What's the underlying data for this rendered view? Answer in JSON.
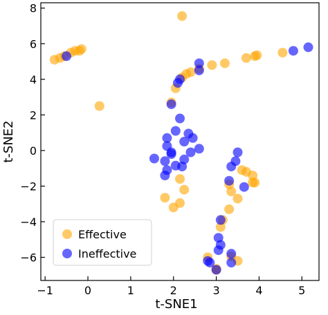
{
  "chart_data": {
    "type": "scatter",
    "xlabel": "t-SNE1",
    "ylabel": "t-SNE2",
    "xlim": [
      -1.1,
      5.4
    ],
    "ylim": [
      -7.3,
      8.3
    ],
    "x_ticks": [
      -1,
      0,
      1,
      2,
      3,
      4,
      5
    ],
    "y_ticks": [
      -6,
      -4,
      -2,
      0,
      2,
      4,
      6,
      8
    ],
    "grid": false,
    "legend_position": "bottom-left",
    "series": [
      {
        "name": "Effective",
        "color": "#ffa500",
        "points": [
          [
            -0.78,
            5.1
          ],
          [
            -0.65,
            5.2
          ],
          [
            -0.55,
            5.3
          ],
          [
            -0.4,
            5.5
          ],
          [
            -0.3,
            5.6
          ],
          [
            -0.2,
            5.6
          ],
          [
            -0.15,
            5.7
          ],
          [
            2.2,
            7.55
          ],
          [
            0.27,
            2.5
          ],
          [
            1.95,
            2.7
          ],
          [
            2.05,
            3.5
          ],
          [
            2.2,
            4.1
          ],
          [
            2.3,
            4.3
          ],
          [
            2.4,
            4.4
          ],
          [
            2.6,
            4.6
          ],
          [
            2.9,
            4.8
          ],
          [
            3.2,
            4.9
          ],
          [
            3.7,
            5.2
          ],
          [
            3.9,
            5.3
          ],
          [
            3.95,
            5.35
          ],
          [
            4.55,
            5.5
          ],
          [
            2.15,
            -1.6
          ],
          [
            2.25,
            -2.2
          ],
          [
            1.8,
            -2.65
          ],
          [
            2.0,
            -3.2
          ],
          [
            2.15,
            -2.95
          ],
          [
            3.1,
            -4.3
          ],
          [
            3.15,
            -3.9
          ],
          [
            2.8,
            -6.0
          ],
          [
            3.35,
            -5.95
          ],
          [
            3.5,
            -6.2
          ],
          [
            3.0,
            -6.7
          ],
          [
            3.3,
            -1.9
          ],
          [
            3.35,
            -2.3
          ],
          [
            3.5,
            -2.7
          ],
          [
            3.6,
            -1.1
          ],
          [
            3.7,
            -1.2
          ],
          [
            3.85,
            -1.4
          ],
          [
            3.85,
            -1.8
          ],
          [
            3.9,
            -1.8
          ],
          [
            3.3,
            -3.3
          ],
          [
            3.0,
            -6.65
          ]
        ]
      },
      {
        "name": "Ineffective",
        "color": "#0000ff",
        "points": [
          [
            -0.5,
            5.3
          ],
          [
            1.95,
            2.6
          ],
          [
            2.1,
            3.8
          ],
          [
            2.15,
            4.0
          ],
          [
            2.6,
            4.9
          ],
          [
            2.6,
            4.5
          ],
          [
            4.8,
            5.6
          ],
          [
            5.15,
            5.8
          ],
          [
            1.55,
            -0.45
          ],
          [
            1.85,
            0.7
          ],
          [
            2.05,
            1.1
          ],
          [
            2.15,
            1.8
          ],
          [
            2.25,
            0.5
          ],
          [
            2.35,
            0.95
          ],
          [
            2.45,
            0.7
          ],
          [
            2.6,
            0.1
          ],
          [
            1.85,
            0.25
          ],
          [
            1.95,
            -0.1
          ],
          [
            1.8,
            -0.6
          ],
          [
            1.95,
            -0.2
          ],
          [
            2.4,
            -0.1
          ],
          [
            2.25,
            -0.5
          ],
          [
            2.05,
            -0.85
          ],
          [
            2.2,
            -0.9
          ],
          [
            1.85,
            -1.1
          ],
          [
            1.8,
            -1.4
          ],
          [
            3.5,
            -0.1
          ],
          [
            3.45,
            -0.6
          ],
          [
            3.35,
            -0.9
          ],
          [
            3.3,
            -1.7
          ],
          [
            3.65,
            -2.05
          ],
          [
            3.1,
            -3.9
          ],
          [
            3.05,
            -4.9
          ],
          [
            3.1,
            -5.3
          ],
          [
            3.05,
            -5.6
          ],
          [
            3.35,
            -5.8
          ],
          [
            3.35,
            -6.3
          ],
          [
            2.85,
            -6.3
          ],
          [
            2.8,
            -6.2
          ],
          [
            3.0,
            -6.7
          ]
        ]
      }
    ]
  }
}
